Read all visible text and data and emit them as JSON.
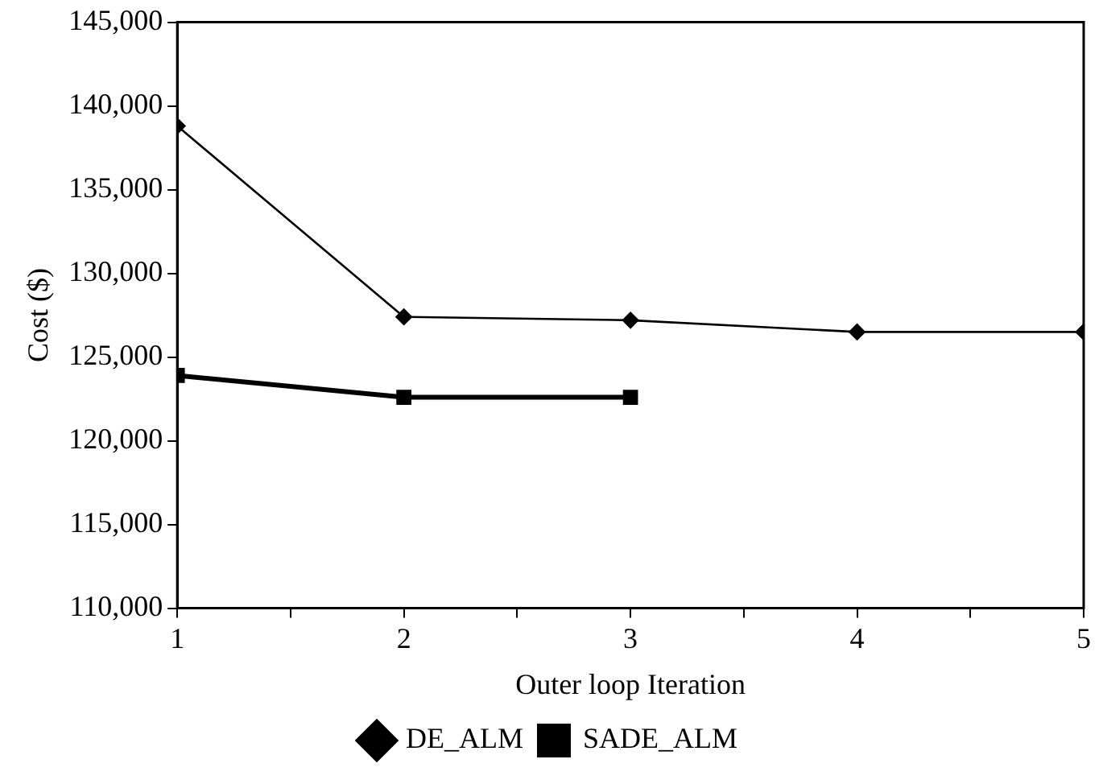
{
  "chart_data": {
    "type": "line",
    "xlabel": "Outer loop Iteration",
    "ylabel": "Cost ($)",
    "x": [
      1,
      2,
      3,
      4,
      5
    ],
    "xlim": [
      1,
      5
    ],
    "xticks": [
      1,
      {
        "value": 1.5,
        "label": null
      },
      2,
      {
        "value": 2.5,
        "label": null
      },
      3,
      {
        "value": 3.5,
        "label": null
      },
      4,
      {
        "value": 4.5,
        "label": null
      },
      5
    ],
    "ylim": [
      110000,
      145000
    ],
    "yticks": [
      {
        "value": 110000,
        "label": "110,000"
      },
      {
        "value": 115000,
        "label": "115,000"
      },
      {
        "value": 120000,
        "label": "120,000"
      },
      {
        "value": 125000,
        "label": "125,000"
      },
      {
        "value": 130000,
        "label": "130,000"
      },
      {
        "value": 135000,
        "label": "135,000"
      },
      {
        "value": 140000,
        "label": "140,000"
      },
      {
        "value": 145000,
        "label": "145,000"
      }
    ],
    "grid": false,
    "legend": "bottom",
    "line_style": "solid",
    "series": [
      {
        "name": "DE_ALM",
        "color": "#000000",
        "marker": "diamond",
        "values": [
          138800,
          127400,
          127200,
          126500,
          126500
        ]
      },
      {
        "name": "SADE_ALM",
        "color": "#000000",
        "marker": "square",
        "values": [
          123900,
          122600,
          122600,
          null,
          null
        ]
      }
    ]
  }
}
